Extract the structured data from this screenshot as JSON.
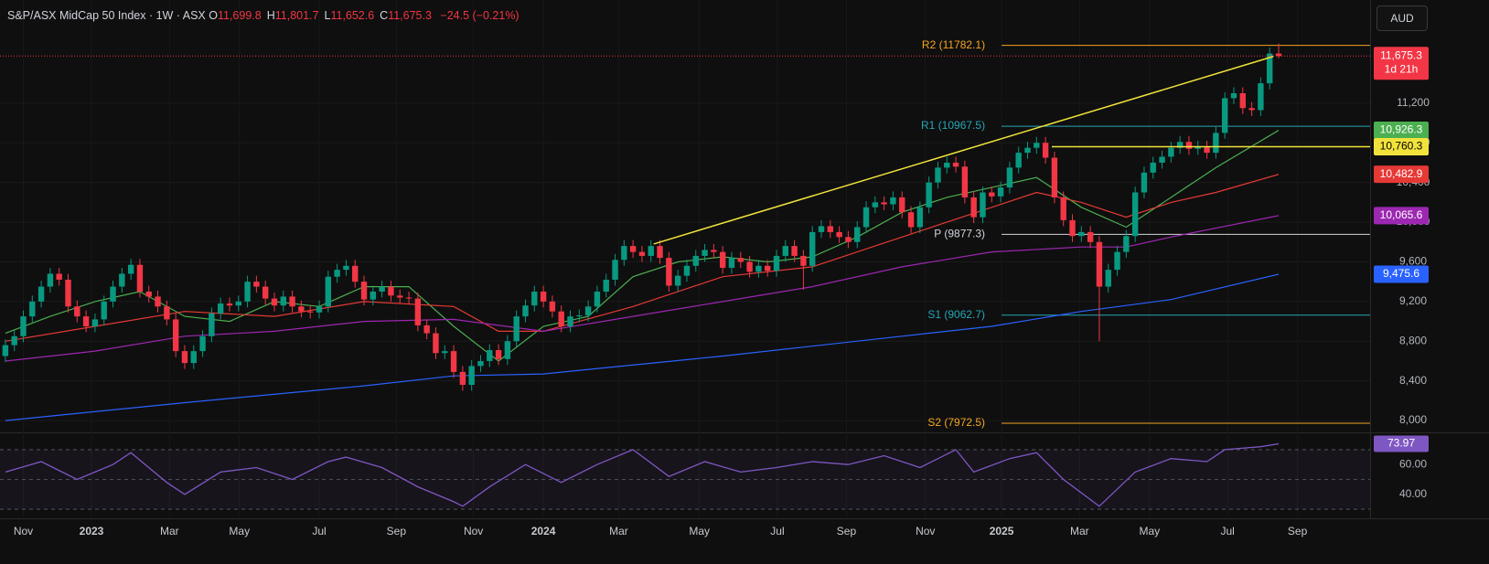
{
  "header": {
    "title": "S&P/ASX MidCap 50 Index · 1W · ASX",
    "ohlc": [
      {
        "key": "O",
        "text": "11,699.8"
      },
      {
        "key": "H",
        "text": "11,801.7"
      },
      {
        "key": "L",
        "text": "11,652.6"
      },
      {
        "key": "C",
        "text": "11,675.3"
      }
    ],
    "change": "−24.5 (−0.21%)"
  },
  "currency": "AUD",
  "chart_data": [
    {
      "type": "candlestick",
      "xlim": [
        -0.6,
        152.2
      ],
      "xticks": [
        {
          "value": 2.0,
          "label": "Nov"
        },
        {
          "value": 9.6,
          "label": "2023"
        },
        {
          "value": 18.3,
          "label": "Mar"
        },
        {
          "value": 26.1,
          "label": "May"
        },
        {
          "value": 35.0,
          "label": "Jul"
        },
        {
          "value": 43.6,
          "label": "Sep"
        },
        {
          "value": 52.2,
          "label": "Nov"
        },
        {
          "value": 60.0,
          "label": "2024"
        },
        {
          "value": 68.4,
          "label": "Mar"
        },
        {
          "value": 77.4,
          "label": "May"
        },
        {
          "value": 86.1,
          "label": "Jul"
        },
        {
          "value": 93.8,
          "label": "Sep"
        },
        {
          "value": 102.6,
          "label": "Nov"
        },
        {
          "value": 111.1,
          "label": "2025"
        },
        {
          "value": 119.8,
          "label": "Mar"
        },
        {
          "value": 127.6,
          "label": "May"
        },
        {
          "value": 136.3,
          "label": "Jul"
        },
        {
          "value": 144.1,
          "label": "Sep"
        }
      ],
      "ylim": [
        7890,
        12240
      ],
      "yticks": [
        {
          "value": 8000,
          "label": "8,000"
        },
        {
          "value": 8400,
          "label": "8,400"
        },
        {
          "value": 8800,
          "label": "8,800"
        },
        {
          "value": 9200,
          "label": "9,200"
        },
        {
          "value": 9600,
          "label": "9,600"
        },
        {
          "value": 10000,
          "label": "10,000"
        },
        {
          "value": 10400,
          "label": "10,400"
        },
        {
          "value": 10800,
          "label": "10,800"
        },
        {
          "value": 11200,
          "label": "11,200"
        }
      ],
      "up_color": "#089981",
      "down_color": "#f23645",
      "open": [
        8650,
        8760,
        8850,
        9050,
        9200,
        9350,
        9480,
        9420,
        9150,
        9050,
        8950,
        9020,
        9200,
        9350,
        9480,
        9570,
        9300,
        9250,
        9150,
        9020,
        8700,
        8580,
        8700,
        8850,
        9080,
        9180,
        9160,
        9200,
        9400,
        9350,
        9230,
        9160,
        9250,
        9150,
        9100,
        9090,
        9150,
        9450,
        9520,
        9560,
        9400,
        9220,
        9300,
        9350,
        9260,
        9240,
        9230,
        8960,
        8880,
        8680,
        8700,
        8490,
        8360,
        8550,
        8600,
        8710,
        8620,
        8800,
        9050,
        9160,
        9300,
        9200,
        9100,
        8950,
        9050,
        9060,
        9150,
        9300,
        9420,
        9620,
        9760,
        9700,
        9660,
        9760,
        9640,
        9360,
        9460,
        9560,
        9660,
        9720,
        9700,
        9540,
        9640,
        9600,
        9500,
        9560,
        9510,
        9660,
        9760,
        9660,
        9560,
        9900,
        9960,
        9900,
        9850,
        9800,
        9950,
        10150,
        10200,
        10180,
        10250,
        10100,
        9950,
        10150,
        10400,
        10550,
        10600,
        10560,
        10250,
        10050,
        10300,
        10260,
        10350,
        10550,
        10700,
        10750,
        10800,
        10650,
        10250,
        10020,
        9860,
        9900,
        9800,
        9350,
        9520,
        9700,
        9860,
        10300,
        10500,
        10600,
        10660,
        10750,
        10810,
        10740,
        10760,
        10700,
        10900,
        11250,
        11300,
        11150,
        11130,
        11400,
        11699.8
      ],
      "high": [
        8820,
        8910,
        9110,
        9260,
        9410,
        9540,
        9540,
        9480,
        9210,
        9110,
        9080,
        9260,
        9410,
        9540,
        9630,
        9630,
        9360,
        9310,
        9210,
        9080,
        8760,
        8760,
        8910,
        9140,
        9240,
        9240,
        9260,
        9460,
        9460,
        9410,
        9290,
        9310,
        9310,
        9210,
        9160,
        9210,
        9510,
        9580,
        9620,
        9620,
        9460,
        9360,
        9410,
        9410,
        9320,
        9300,
        9290,
        9020,
        8940,
        8760,
        8760,
        8550,
        8610,
        8660,
        8770,
        8770,
        8860,
        9110,
        9220,
        9360,
        9360,
        9260,
        9160,
        9110,
        9120,
        9210,
        9360,
        9480,
        9680,
        9820,
        9820,
        9760,
        9820,
        9820,
        9700,
        9520,
        9620,
        9720,
        9780,
        9780,
        9760,
        9700,
        9700,
        9660,
        9620,
        9620,
        9720,
        9820,
        9820,
        9720,
        9960,
        10020,
        10020,
        9960,
        9910,
        10010,
        10210,
        10260,
        10260,
        10310,
        10310,
        10160,
        10210,
        10460,
        10610,
        10660,
        10660,
        10620,
        10310,
        10360,
        10360,
        10410,
        10610,
        10760,
        10810,
        10860,
        10860,
        10710,
        10310,
        10080,
        9960,
        9960,
        9860,
        9580,
        9760,
        9920,
        10360,
        10560,
        10660,
        10720,
        10810,
        10870,
        10870,
        10820,
        10820,
        10960,
        11310,
        11360,
        11360,
        11210,
        11460,
        11760,
        11801.7
      ],
      "low": [
        8590,
        8700,
        8790,
        8990,
        9140,
        9290,
        9360,
        9090,
        8990,
        8890,
        8890,
        8960,
        9140,
        9290,
        9420,
        9240,
        9190,
        9090,
        8960,
        8640,
        8520,
        8520,
        8640,
        8790,
        9020,
        9100,
        9100,
        9140,
        9290,
        9170,
        9100,
        9100,
        9090,
        9040,
        9030,
        9030,
        9090,
        9390,
        9460,
        9340,
        9160,
        9160,
        9240,
        9200,
        9180,
        9170,
        8900,
        8820,
        8620,
        8620,
        8430,
        8300,
        8300,
        8490,
        8540,
        8560,
        8560,
        8740,
        8990,
        9100,
        9140,
        9040,
        8890,
        8890,
        8990,
        9000,
        9090,
        9240,
        9360,
        9560,
        9640,
        9600,
        9600,
        9580,
        9300,
        9300,
        9400,
        9500,
        9600,
        9640,
        9480,
        9480,
        9540,
        9440,
        9440,
        9450,
        9450,
        9600,
        9600,
        9320,
        9500,
        9840,
        9840,
        9790,
        9740,
        9740,
        9890,
        10090,
        10120,
        10120,
        10040,
        9890,
        9890,
        10090,
        10340,
        10490,
        10500,
        10190,
        9990,
        9990,
        10200,
        10200,
        10290,
        10490,
        10640,
        10690,
        10590,
        10190,
        9960,
        9800,
        9800,
        9740,
        8800,
        9290,
        9460,
        9640,
        9800,
        10240,
        10440,
        10540,
        10600,
        10690,
        10680,
        10680,
        10640,
        10640,
        10840,
        11190,
        11090,
        11070,
        11070,
        11340,
        11652.6
      ],
      "close": [
        8760,
        8850,
        9050,
        9200,
        9350,
        9480,
        9420,
        9150,
        9050,
        8950,
        9020,
        9200,
        9350,
        9480,
        9570,
        9300,
        9250,
        9150,
        9020,
        8700,
        8580,
        8700,
        8850,
        9080,
        9180,
        9160,
        9200,
        9400,
        9350,
        9230,
        9160,
        9250,
        9150,
        9100,
        9090,
        9150,
        9450,
        9520,
        9560,
        9400,
        9220,
        9300,
        9350,
        9260,
        9240,
        9230,
        8960,
        8880,
        8680,
        8700,
        8490,
        8360,
        8550,
        8600,
        8710,
        8620,
        8800,
        9050,
        9160,
        9300,
        9200,
        9100,
        8950,
        9050,
        9060,
        9150,
        9300,
        9420,
        9620,
        9760,
        9700,
        9660,
        9760,
        9640,
        9360,
        9460,
        9560,
        9660,
        9720,
        9700,
        9540,
        9640,
        9600,
        9500,
        9560,
        9510,
        9660,
        9760,
        9660,
        9560,
        9900,
        9960,
        9900,
        9850,
        9800,
        9950,
        10150,
        10200,
        10180,
        10250,
        10100,
        9950,
        10150,
        10400,
        10550,
        10600,
        10560,
        10250,
        10050,
        10300,
        10260,
        10350,
        10550,
        10700,
        10750,
        10800,
        10650,
        10250,
        10020,
        9860,
        9900,
        9800,
        9350,
        9520,
        9700,
        9860,
        10300,
        10500,
        10600,
        10660,
        10750,
        10810,
        10740,
        10760,
        10700,
        10900,
        11250,
        11300,
        11150,
        11130,
        11400,
        11699.8,
        11675.3
      ],
      "last_price": {
        "label": "11,675.3",
        "countdown": "1d 21h",
        "color": "#f23645"
      },
      "series": [
        {
          "color": "#4caf50",
          "value_label": "10,926.3",
          "x": [
            0,
            5,
            10,
            15,
            20,
            25,
            30,
            35,
            40,
            45,
            50,
            55,
            60,
            65,
            70,
            75,
            80,
            85,
            90,
            95,
            100,
            105,
            110,
            115,
            120,
            125,
            130,
            135,
            142
          ],
          "values": [
            8880,
            9050,
            9200,
            9300,
            9050,
            9000,
            9200,
            9150,
            9350,
            9350,
            8950,
            8600,
            8950,
            9050,
            9450,
            9600,
            9650,
            9600,
            9650,
            9850,
            10100,
            10250,
            10350,
            10450,
            10150,
            9950,
            10250,
            10550,
            10926.3
          ]
        },
        {
          "color": "#e53935",
          "value_label": "10,482.9",
          "x": [
            0,
            10,
            20,
            30,
            40,
            50,
            55,
            60,
            70,
            80,
            90,
            100,
            110,
            115,
            120,
            125,
            130,
            135,
            142
          ],
          "values": [
            8800,
            8950,
            9100,
            9050,
            9200,
            9150,
            8900,
            8900,
            9150,
            9450,
            9550,
            9850,
            10150,
            10300,
            10200,
            10050,
            10200,
            10300,
            10482.9
          ]
        },
        {
          "color": "#9c27b0",
          "value_label": "10,065.6",
          "x": [
            0,
            10,
            20,
            30,
            40,
            50,
            60,
            70,
            80,
            90,
            100,
            110,
            120,
            125,
            130,
            142
          ],
          "values": [
            8600,
            8700,
            8850,
            8900,
            9000,
            9020,
            8900,
            9050,
            9200,
            9350,
            9550,
            9700,
            9750,
            9750,
            9850,
            10065.6
          ]
        },
        {
          "color": "#2962ff",
          "value_label": "9,475.6",
          "x": [
            0,
            20,
            40,
            50,
            60,
            80,
            100,
            110,
            120,
            130,
            142
          ],
          "values": [
            8000,
            8180,
            8350,
            8450,
            8470,
            8650,
            8850,
            8950,
            9100,
            9220,
            9475.6
          ]
        }
      ],
      "pivots": [
        {
          "label": "R2 (11782.1)",
          "value": 11782.1,
          "x": 111.1,
          "color": "#f5a623"
        },
        {
          "label": "R1 (10967.5)",
          "value": 10967.5,
          "x": 111.1,
          "color": "#26a6b7"
        },
        {
          "label": "P (9877.3)",
          "value": 9877.3,
          "x": 111.1,
          "color": "#d1d4dc"
        },
        {
          "label": "S1 (9062.7)",
          "value": 9062.7,
          "x": 111.1,
          "color": "#26a6b7"
        },
        {
          "label": "S2 (7972.5)",
          "value": 7972.5,
          "x": 111.1,
          "color": "#f5a623"
        }
      ],
      "trendline": {
        "x": [
          72.3,
          141.4
        ],
        "values": [
          9780,
          11671
        ],
        "color": "#f2e33c"
      },
      "level": {
        "value": 10760.3,
        "label": "10,760.3",
        "x": 116.7,
        "color": "#f2e33c"
      }
    },
    {
      "type": "line",
      "xlim": [
        -0.6,
        152.2
      ],
      "ylim": [
        24.5,
        79.8
      ],
      "yticks": [
        {
          "value": 60,
          "label": "60.00"
        },
        {
          "value": 40,
          "label": "40.00"
        }
      ],
      "band": [
        30,
        70
      ],
      "levels": [
        70,
        50,
        30
      ],
      "color": "#7e57c2",
      "value_label": "73.97",
      "x": [
        0,
        4,
        8,
        12,
        14,
        18,
        20,
        24,
        28,
        32,
        36,
        38,
        42,
        46,
        50,
        51,
        54,
        58,
        62,
        66,
        70,
        74,
        78,
        82,
        86,
        90,
        94,
        98,
        102,
        106,
        108,
        112,
        115,
        118,
        122,
        126,
        130,
        134,
        136,
        140,
        142
      ],
      "values": [
        55,
        62,
        50,
        60,
        68,
        48,
        40,
        55,
        58,
        50,
        62,
        65,
        58,
        45,
        35,
        32,
        45,
        60,
        48,
        60,
        70,
        52,
        62,
        55,
        58,
        62,
        60,
        66,
        58,
        70,
        55,
        64,
        68,
        50,
        32,
        55,
        64,
        62,
        70,
        72,
        73.97
      ]
    }
  ]
}
